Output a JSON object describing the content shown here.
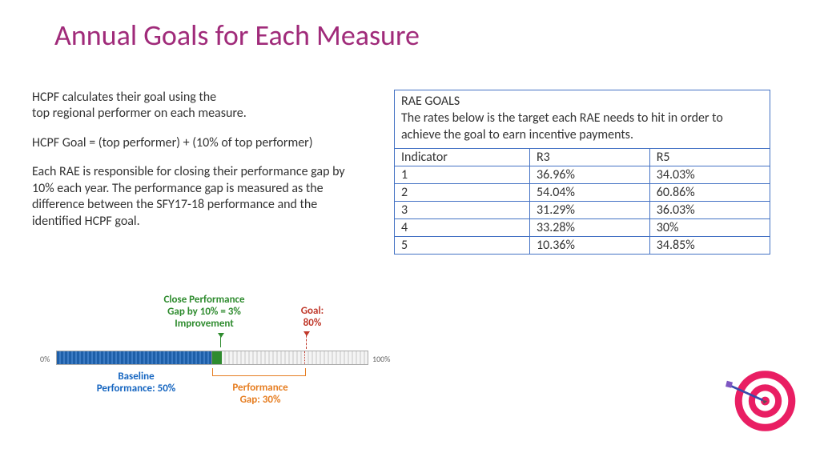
{
  "title": "Annual Goals for Each Measure",
  "body": {
    "p1_line1": "HCPF calculates their goal using the",
    "p1_line2": " top regional performer on each measure.",
    "p2": "HCPF Goal = (top performer) + (10% of top performer)",
    "p3": "Each RAE is responsible for closing their performance gap by 10% each year. The performance gap is measured as the difference between the SFY17-18 performance and the identified HCPF goal."
  },
  "rae": {
    "heading": "RAE GOALS",
    "sub": "The rates below is the target each RAE needs to hit in order to achieve the goal to earn incentive payments.",
    "columns": [
      "Indicator",
      "R3",
      "R5"
    ],
    "rows": [
      [
        "1",
        "36.96%",
        "34.03%"
      ],
      [
        "2",
        "54.04%",
        "60.86%"
      ],
      [
        "3",
        "31.29%",
        "36.03%"
      ],
      [
        "4",
        "33.28%",
        "30%"
      ],
      [
        "5",
        "10.36%",
        "34.85%"
      ]
    ],
    "col_widths": [
      "36%",
      "32%",
      "32%"
    ]
  },
  "diagram": {
    "scale_left": "0%",
    "scale_right": "100%",
    "green_l1": "Close Performance",
    "green_l2": "Gap by 10% = 3%",
    "green_l3": "Improvement",
    "red_l1": "Goal:",
    "red_l2": "80%",
    "blue_l1": "Baseline",
    "blue_l2": "Performance: 50%",
    "orange_l1": "Performance",
    "orange_l2": "Gap: 30%",
    "baseline_pct": 50,
    "close_pct": 3,
    "goal_pct": 80,
    "colors": {
      "green": "#2e8b2e",
      "red": "#c0392b",
      "blue": "#1565c0",
      "orange": "#e67e22",
      "baseline_bar": "#1e5fa8"
    }
  },
  "target_colors": {
    "ring": "#e91e63",
    "white": "#ffffff",
    "dart_body": "#3949ab",
    "dart_feather": "#7e57c2"
  }
}
